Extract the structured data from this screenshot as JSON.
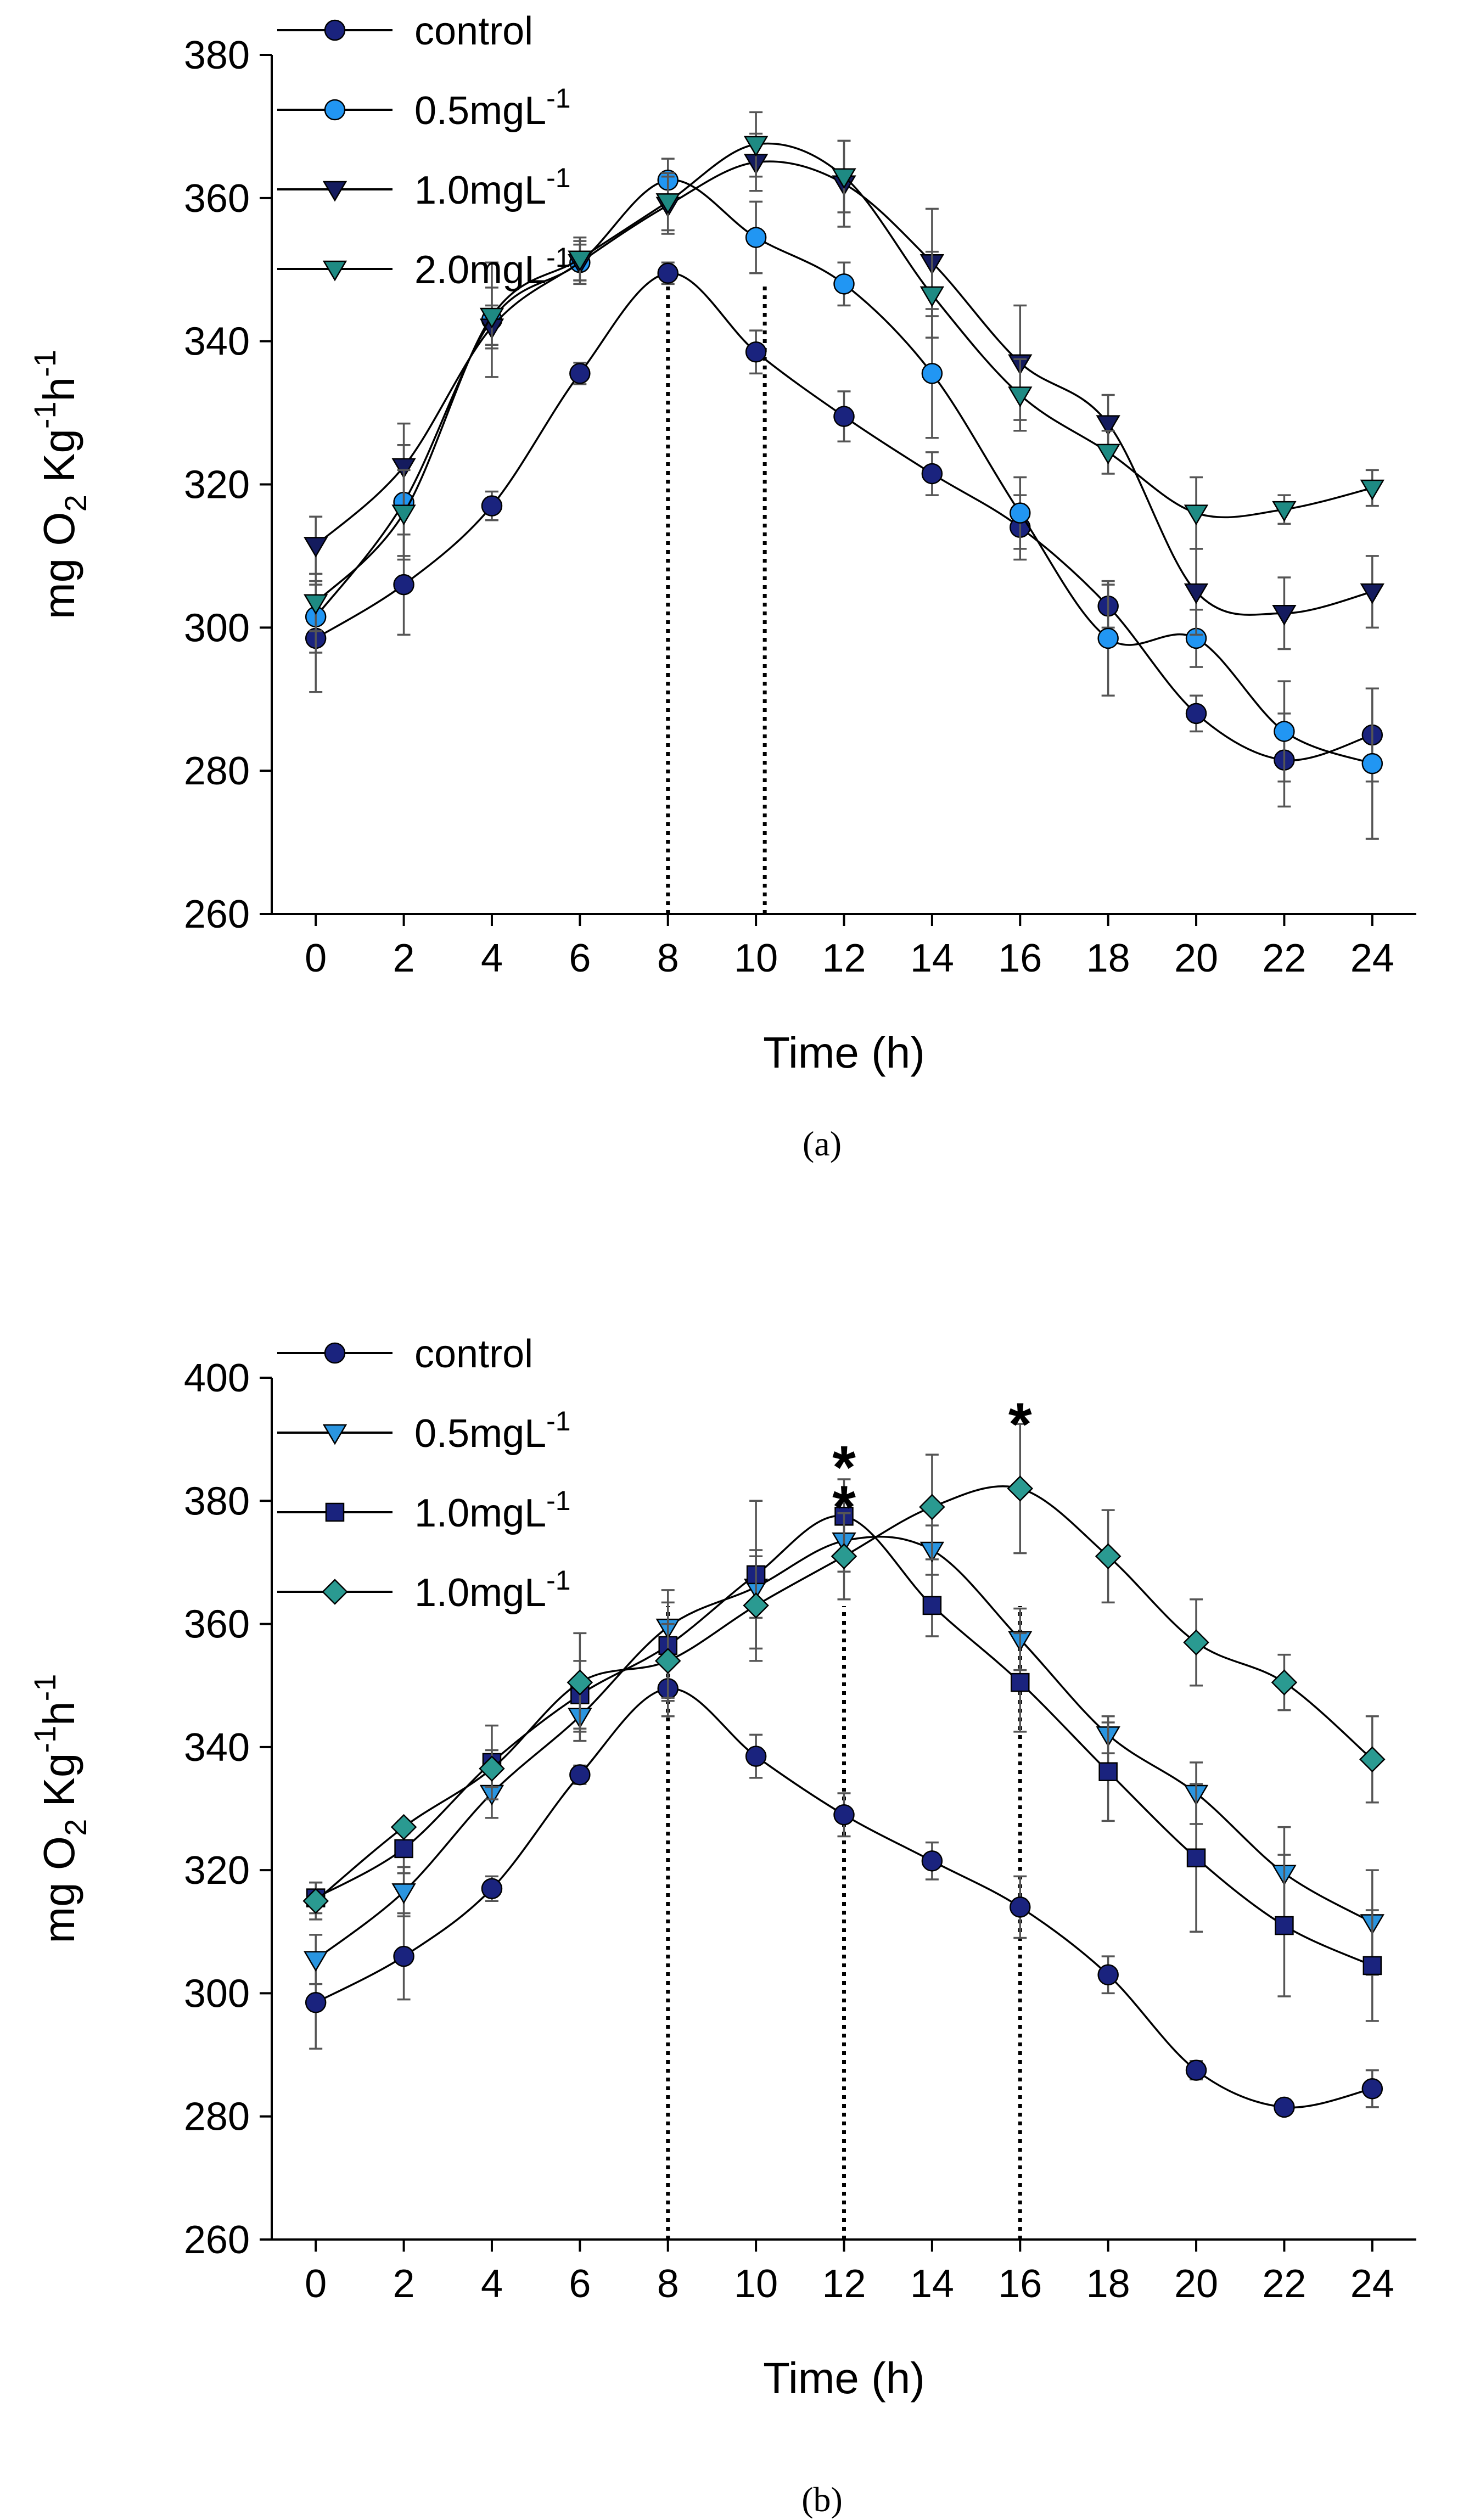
{
  "chart_data": [
    {
      "id": "a",
      "type": "line",
      "panel_label": "(a)",
      "xlabel": "Time (h)",
      "ylabel": "mg O2 Kg-1h-1",
      "x": [
        0,
        2,
        4,
        6,
        8,
        10,
        12,
        14,
        16,
        18,
        20,
        22,
        24
      ],
      "xlim": [
        -1,
        25
      ],
      "ylim": [
        260,
        380
      ],
      "yticks": [
        260,
        280,
        300,
        320,
        340,
        360,
        380
      ],
      "vlines": [
        8,
        10.2
      ],
      "asterisks": [],
      "legend": [
        {
          "main": "control",
          "sup": ""
        },
        {
          "main": "0.5mgL",
          "sup": "-1"
        },
        {
          "main": "1.0mgL",
          "sup": "-1"
        },
        {
          "main": "2.0mgL",
          "sup": "-1"
        }
      ],
      "series": [
        {
          "name": "control",
          "marker": "circle",
          "color": "#1a237e",
          "values": [
            298.5,
            306,
            317,
            335.5,
            349.5,
            338.5,
            329.5,
            321.5,
            314,
            303,
            288,
            281.5,
            285
          ],
          "errors": [
            7.5,
            7,
            2,
            1.5,
            1.5,
            3,
            3.5,
            3,
            4.5,
            3,
            2.5,
            6.5,
            6.5
          ]
        },
        {
          "name": "0.5mgL-1",
          "marker": "circle",
          "color": "#2196f3",
          "values": [
            301.5,
            317.5,
            343,
            351,
            362.5,
            354.5,
            348,
            335.5,
            316,
            298.5,
            298.5,
            285.5,
            281
          ],
          "errors": [
            5,
            8,
            8,
            3,
            3,
            5,
            3,
            9,
            5,
            8,
            4,
            7,
            10.5
          ]
        },
        {
          "name": "1.0mgL-1",
          "marker": "triangle-down",
          "color": "#141b5e",
          "values": [
            311.5,
            322.5,
            342,
            351,
            359,
            365,
            362,
            351,
            337,
            328.5,
            305,
            302,
            305
          ],
          "errors": [
            4,
            6,
            3,
            2.5,
            4,
            4,
            6,
            7.5,
            8,
            4,
            6,
            5,
            5
          ]
        },
        {
          "name": "2.0mgL-1",
          "marker": "triangle-down",
          "color": "#1e8a83",
          "values": [
            303.5,
            316,
            343.5,
            351.5,
            359.5,
            367.5,
            363,
            346.5,
            332.5,
            324.5,
            316,
            316.5,
            319.5
          ],
          "errors": [
            4,
            6,
            4,
            3,
            4,
            4.5,
            5,
            6,
            5,
            3,
            5,
            2,
            2.5
          ]
        }
      ]
    },
    {
      "id": "b",
      "type": "line",
      "panel_label": "(b)",
      "xlabel": "Time (h)",
      "ylabel": "mg O2 Kg-1h-1",
      "x": [
        0,
        2,
        4,
        6,
        8,
        10,
        12,
        14,
        16,
        18,
        20,
        22,
        24
      ],
      "xlim": [
        -1,
        25
      ],
      "ylim": [
        260,
        400
      ],
      "yticks": [
        260,
        280,
        300,
        320,
        340,
        360,
        380,
        400
      ],
      "vlines": [
        8,
        12,
        16
      ],
      "asterisks": [
        {
          "x": 12,
          "y": 387,
          "text": "*"
        },
        {
          "x": 12,
          "y": 380.5,
          "text": "*"
        },
        {
          "x": 16,
          "y": 394,
          "text": "*"
        }
      ],
      "legend": [
        {
          "main": "control",
          "sup": ""
        },
        {
          "main": "0.5mgL",
          "sup": "-1"
        },
        {
          "main": "1.0mgL",
          "sup": "-1"
        },
        {
          "main": "1.0mgL",
          "sup": "-1"
        }
      ],
      "series": [
        {
          "name": "control",
          "marker": "circle",
          "color": "#1a237e",
          "values": [
            298.5,
            306,
            317,
            335.5,
            349.5,
            338.5,
            329,
            321.5,
            314,
            303,
            287.5,
            281.5,
            284.5
          ],
          "errors": [
            7.5,
            7,
            2,
            1.5,
            4.5,
            3.5,
            3.5,
            3,
            5,
            3,
            1.5,
            1,
            3
          ]
        },
        {
          "name": "0.5mgL-1",
          "marker": "triangle-down",
          "color": "#2a95e0",
          "values": [
            305.5,
            316.5,
            332.5,
            345,
            359.5,
            366,
            373.5,
            372,
            357.5,
            342,
            332.5,
            319.5,
            311.5
          ],
          "errors": [
            4,
            4,
            4,
            4,
            4,
            5,
            5,
            4,
            5,
            3,
            5,
            7.5,
            8.5
          ]
        },
        {
          "name": "1.0mgL-1",
          "marker": "square",
          "color": "#1a237e",
          "values": [
            315.5,
            323.5,
            337.5,
            348.5,
            356.5,
            368,
            377.5,
            363,
            350.5,
            336,
            322,
            311,
            304.5
          ],
          "errors": [
            2.5,
            4,
            6,
            5.5,
            9,
            12,
            6,
            5,
            8,
            8,
            12,
            11.5,
            9
          ]
        },
        {
          "name": "1.0mgL-1",
          "marker": "diamond",
          "color": "#2a9a91",
          "values": [
            315,
            327,
            336.5,
            350.5,
            354,
            363,
            371,
            379,
            382,
            371,
            357,
            350.5,
            338
          ],
          "errors": [
            3,
            1,
            3,
            8,
            6,
            9,
            7,
            8.5,
            10.5,
            7.5,
            7,
            4.5,
            7
          ]
        }
      ]
    }
  ]
}
